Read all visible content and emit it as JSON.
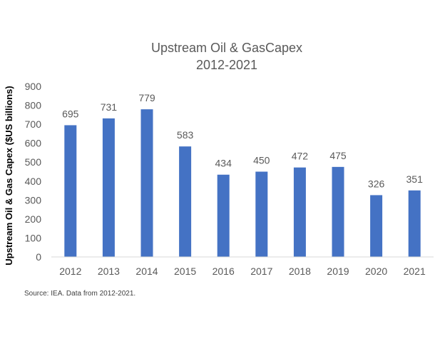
{
  "chart_data": {
    "type": "bar",
    "title_line1": "Upstream Oil & GasCapex",
    "title_line2": "2012-2021",
    "xlabel": "",
    "ylabel": "Upstream Oil & Gas Capex ($US billions)",
    "categories": [
      "2012",
      "2013",
      "2014",
      "2015",
      "2016",
      "2017",
      "2018",
      "2019",
      "2020",
      "2021"
    ],
    "values": [
      695,
      731,
      779,
      583,
      434,
      450,
      472,
      475,
      326,
      351
    ],
    "ylim": [
      0,
      900
    ],
    "yticks": [
      0,
      100,
      200,
      300,
      400,
      500,
      600,
      700,
      800,
      900
    ],
    "grid": false,
    "legend": "none",
    "data_labels": true
  },
  "source_note": "Source: IEA. Data from 2012-2021.",
  "colors": {
    "bar": "#4472C4",
    "text": "#595959",
    "title": "#595959",
    "axis_line": "#d9d9d9",
    "ylabel": "#000000",
    "source": "#404040"
  }
}
